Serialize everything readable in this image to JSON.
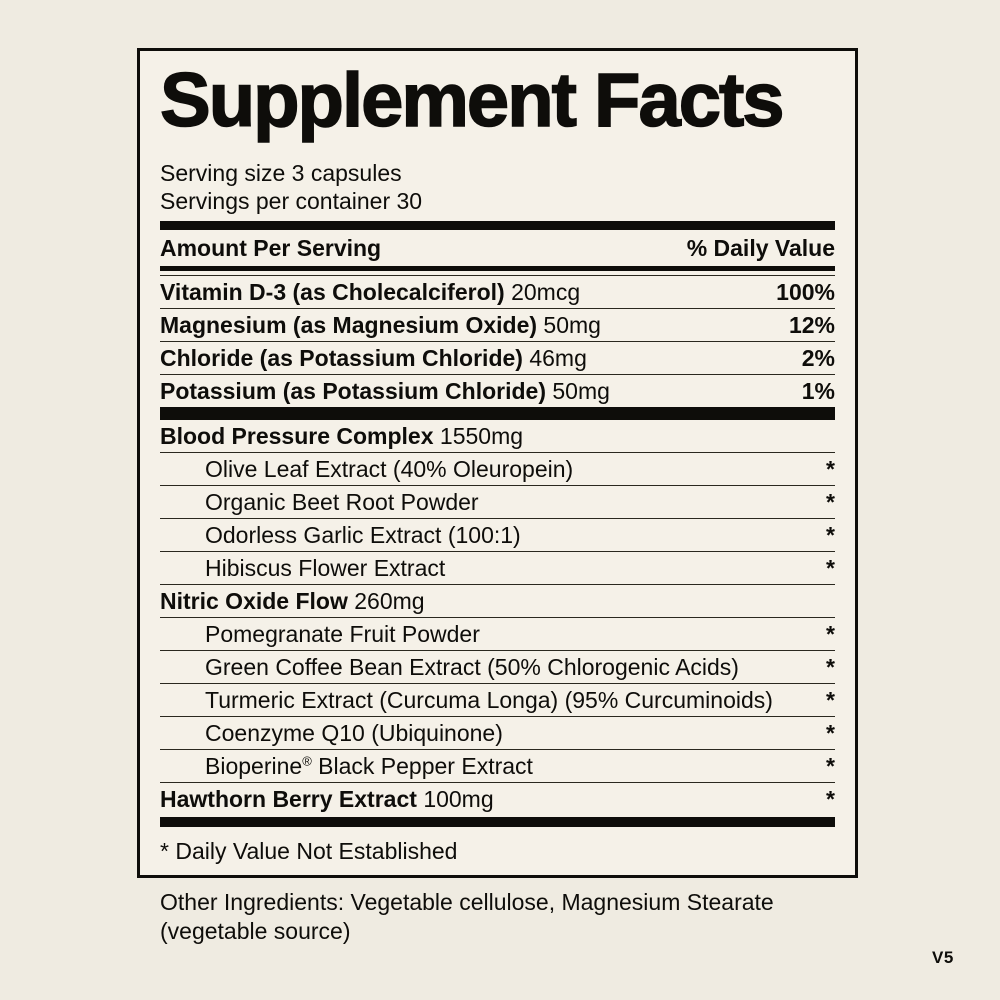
{
  "colors": {
    "background": "#efebe1",
    "label_background": "#f5f1e8",
    "ink": "#0e0d0a"
  },
  "label": {
    "title": "Supplement Facts",
    "serving": {
      "size": "Serving size 3 capsules",
      "per_container": "Servings per container 30"
    },
    "header": {
      "left": "Amount Per Serving",
      "right": "% Daily Value"
    },
    "nutrients": [
      {
        "name": "Vitamin D-3 (as Cholecalciferol)",
        "amount": "20mcg",
        "dv": "100%"
      },
      {
        "name": "Magnesium (as Magnesium Oxide)",
        "amount": "50mg",
        "dv": "12%"
      },
      {
        "name": "Chloride (as Potassium Chloride)",
        "amount": "46mg",
        "dv": "2%"
      },
      {
        "name": "Potassium (as Potassium Chloride)",
        "amount": "50mg",
        "dv": "1%"
      }
    ],
    "blends": [
      {
        "name": "Blood Pressure Complex",
        "amount": "1550mg",
        "items": [
          {
            "text": "Olive Leaf Extract (40% Oleuropein)",
            "dv": "*"
          },
          {
            "text": "Organic Beet Root Powder",
            "dv": "*"
          },
          {
            "text": "Odorless Garlic Extract (100:1)",
            "dv": "*"
          },
          {
            "text": "Hibiscus Flower Extract",
            "dv": "*"
          }
        ]
      },
      {
        "name": "Nitric Oxide Flow",
        "amount": "260mg",
        "items": [
          {
            "text": "Pomegranate Fruit Powder",
            "dv": "*"
          },
          {
            "text": "Green Coffee Bean Extract (50% Chlorogenic Acids)",
            "dv": "*"
          },
          {
            "text": "Turmeric Extract (Curcuma Longa) (95% Curcuminoids)",
            "dv": "*"
          },
          {
            "text": "Coenzyme Q10 (Ubiquinone)",
            "dv": "*"
          },
          {
            "brand": "Bioperine",
            "reg": "®",
            "rest": " Black Pepper Extract",
            "dv": "*"
          }
        ]
      }
    ],
    "hawthorn": {
      "name": "Hawthorn Berry Extract",
      "amount": "100mg",
      "dv": "*"
    },
    "footnote": "* Daily Value Not Established",
    "other_ingredients": "Other Ingredients: Vegetable cellulose, Magnesium Stearate (vegetable source)"
  },
  "version": "V5"
}
